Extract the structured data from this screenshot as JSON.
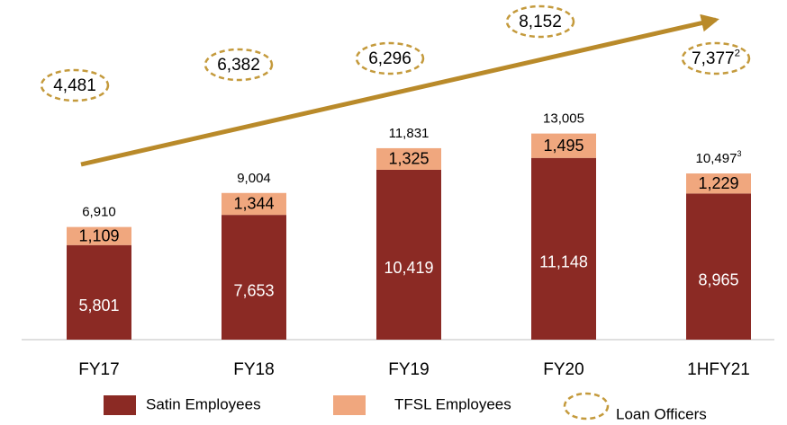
{
  "chart_data": {
    "type": "stacked-bar",
    "categories": [
      "FY17",
      "FY18",
      "FY19",
      "FY20",
      "1HFY21"
    ],
    "series": [
      {
        "name": "Satin Employees",
        "color": "#8b2a24",
        "values": [
          5801,
          7653,
          10419,
          11148,
          8965
        ],
        "value_labels": [
          "5,801",
          "7,653",
          "10,419",
          "11,148",
          "8,965"
        ]
      },
      {
        "name": "TFSL Employees",
        "color": "#f0a77e",
        "values": [
          1109,
          1344,
          1325,
          1495,
          1229
        ],
        "value_labels": [
          "1,109",
          "1,344",
          "1,325",
          "1,495",
          "1,229"
        ]
      }
    ],
    "totals": {
      "values": [
        6910,
        9004,
        11831,
        13005,
        10497
      ],
      "value_labels": [
        "6,910",
        "9,004",
        "11,831",
        "13,005",
        "10,497"
      ],
      "footnotes": [
        null,
        null,
        null,
        null,
        "3"
      ]
    },
    "loan_officers": {
      "name": "Loan Officers",
      "color": "#c49a3c",
      "values": [
        4481,
        6382,
        6296,
        8152,
        7377
      ],
      "value_labels": [
        "4,481",
        "6,382",
        "6,296",
        "8,152",
        "7,377"
      ],
      "footnotes": [
        null,
        null,
        null,
        null,
        "2"
      ]
    },
    "ylim": [
      0,
      14000
    ]
  }
}
